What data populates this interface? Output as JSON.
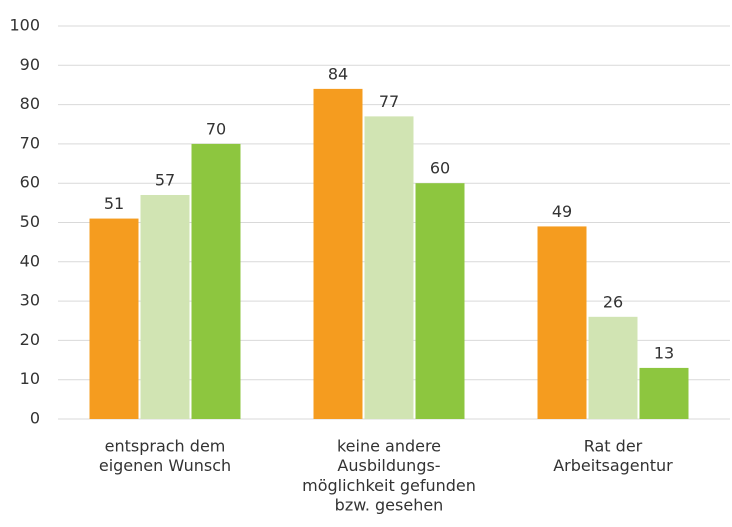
{
  "chart_data": {
    "type": "bar",
    "categories": [
      [
        "entsprach dem",
        "eigenen Wunsch"
      ],
      [
        "keine andere",
        "Ausbildungs-",
        "möglichkeit gefunden",
        "bzw. gesehen"
      ],
      [
        "Rat der",
        "Arbeitsagentur"
      ]
    ],
    "series": [
      {
        "color": "#f59c1f",
        "values": [
          51,
          84,
          49
        ]
      },
      {
        "color": "#d1e4b3",
        "values": [
          57,
          77,
          26
        ]
      },
      {
        "color": "#8dc63f",
        "values": [
          70,
          60,
          13
        ]
      }
    ],
    "ylim": [
      0,
      100
    ],
    "yticks": [
      0,
      10,
      20,
      30,
      40,
      50,
      60,
      70,
      80,
      90,
      100
    ],
    "grid": true
  }
}
